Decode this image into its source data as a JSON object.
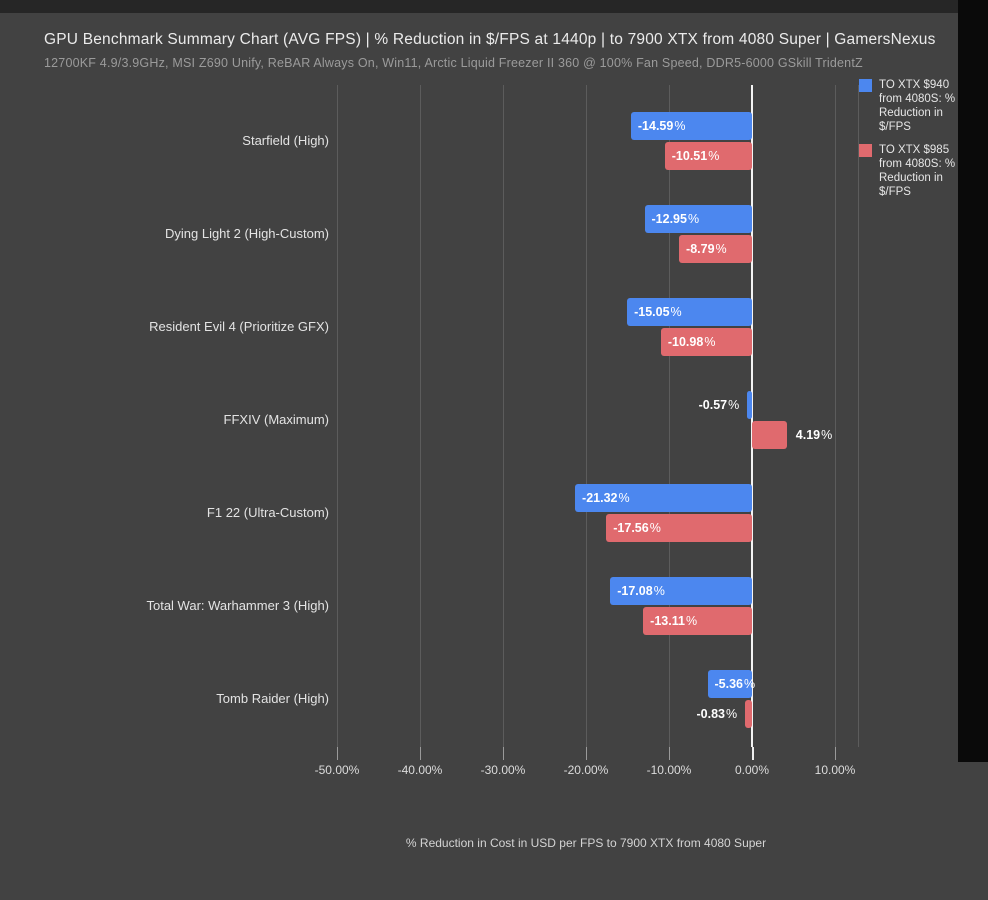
{
  "colors": {
    "page_background": "#424242",
    "letterbox_top": "#262626",
    "letterbox_right": "#0a0a0a",
    "gridline": "#5c5c5c",
    "zero_line": "#f4f4f4",
    "series_blue": "#4c87ef",
    "series_red": "#e06a6e"
  },
  "header": {
    "title": "GPU Benchmark Summary Chart (AVG FPS) | % Reduction in $/FPS at 1440p | to 7900 XTX from 4080 Super | GamersNexus",
    "subtitle": "12700KF 4.9/3.9GHz, MSI Z690 Unify, ReBAR Always On, Win11, Arctic Liquid Freezer II 360 @ 100% Fan Speed, DDR5-6000 GSkill TridentZ"
  },
  "legend": {
    "items": [
      {
        "label": "TO XTX $940 from 4080S: % Reduction in $/FPS",
        "color": "#4c87ef"
      },
      {
        "label": "TO XTX $985 from 4080S: % Reduction in $/FPS",
        "color": "#e06a6e"
      }
    ]
  },
  "chart_data": {
    "type": "bar",
    "orientation": "horizontal",
    "title": "GPU Benchmark Summary Chart (AVG FPS) | % Reduction in $/FPS at 1440p | to 7900 XTX from 4080 Super | GamersNexus",
    "subtitle": "12700KF 4.9/3.9GHz, MSI Z690 Unify, ReBAR Always On, Win11, Arctic Liquid Freezer II 360 @ 100% Fan Speed, DDR5-6000 GSkill TridentZ",
    "categories": [
      "Starfield (High)",
      "Dying Light 2 (High-Custom)",
      "Resident Evil 4 (Prioritize GFX)",
      "FFXIV (Maximum)",
      "F1 22 (Ultra-Custom)",
      "Total War: Warhammer 3 (High)",
      "Tomb Raider (High)"
    ],
    "series": [
      {
        "name": "TO XTX $940 from 4080S: % Reduction in $/FPS",
        "color": "#4c87ef",
        "values": [
          -14.59,
          -12.95,
          -15.05,
          -0.57,
          -21.32,
          -17.08,
          -5.36
        ]
      },
      {
        "name": "TO XTX $985 from 4080S: % Reduction in $/FPS",
        "color": "#e06a6e",
        "values": [
          -10.51,
          -8.79,
          -10.98,
          4.19,
          -17.56,
          -13.11,
          -0.83
        ]
      }
    ],
    "xlabel": "% Reduction in Cost in USD per FPS to 7900 XTX from 4080 Super",
    "ylabel": "",
    "x_ticks": [
      "-50.00%",
      "-40.00%",
      "-30.00%",
      "-20.00%",
      "-10.00%",
      "0.00%",
      "10.00%"
    ],
    "x_tick_values": [
      -50,
      -40,
      -30,
      -20,
      -10,
      0,
      10
    ],
    "xlim": [
      -50,
      13
    ],
    "grid": true,
    "legend_position": "top-right",
    "value_label_format": "0.00%"
  }
}
